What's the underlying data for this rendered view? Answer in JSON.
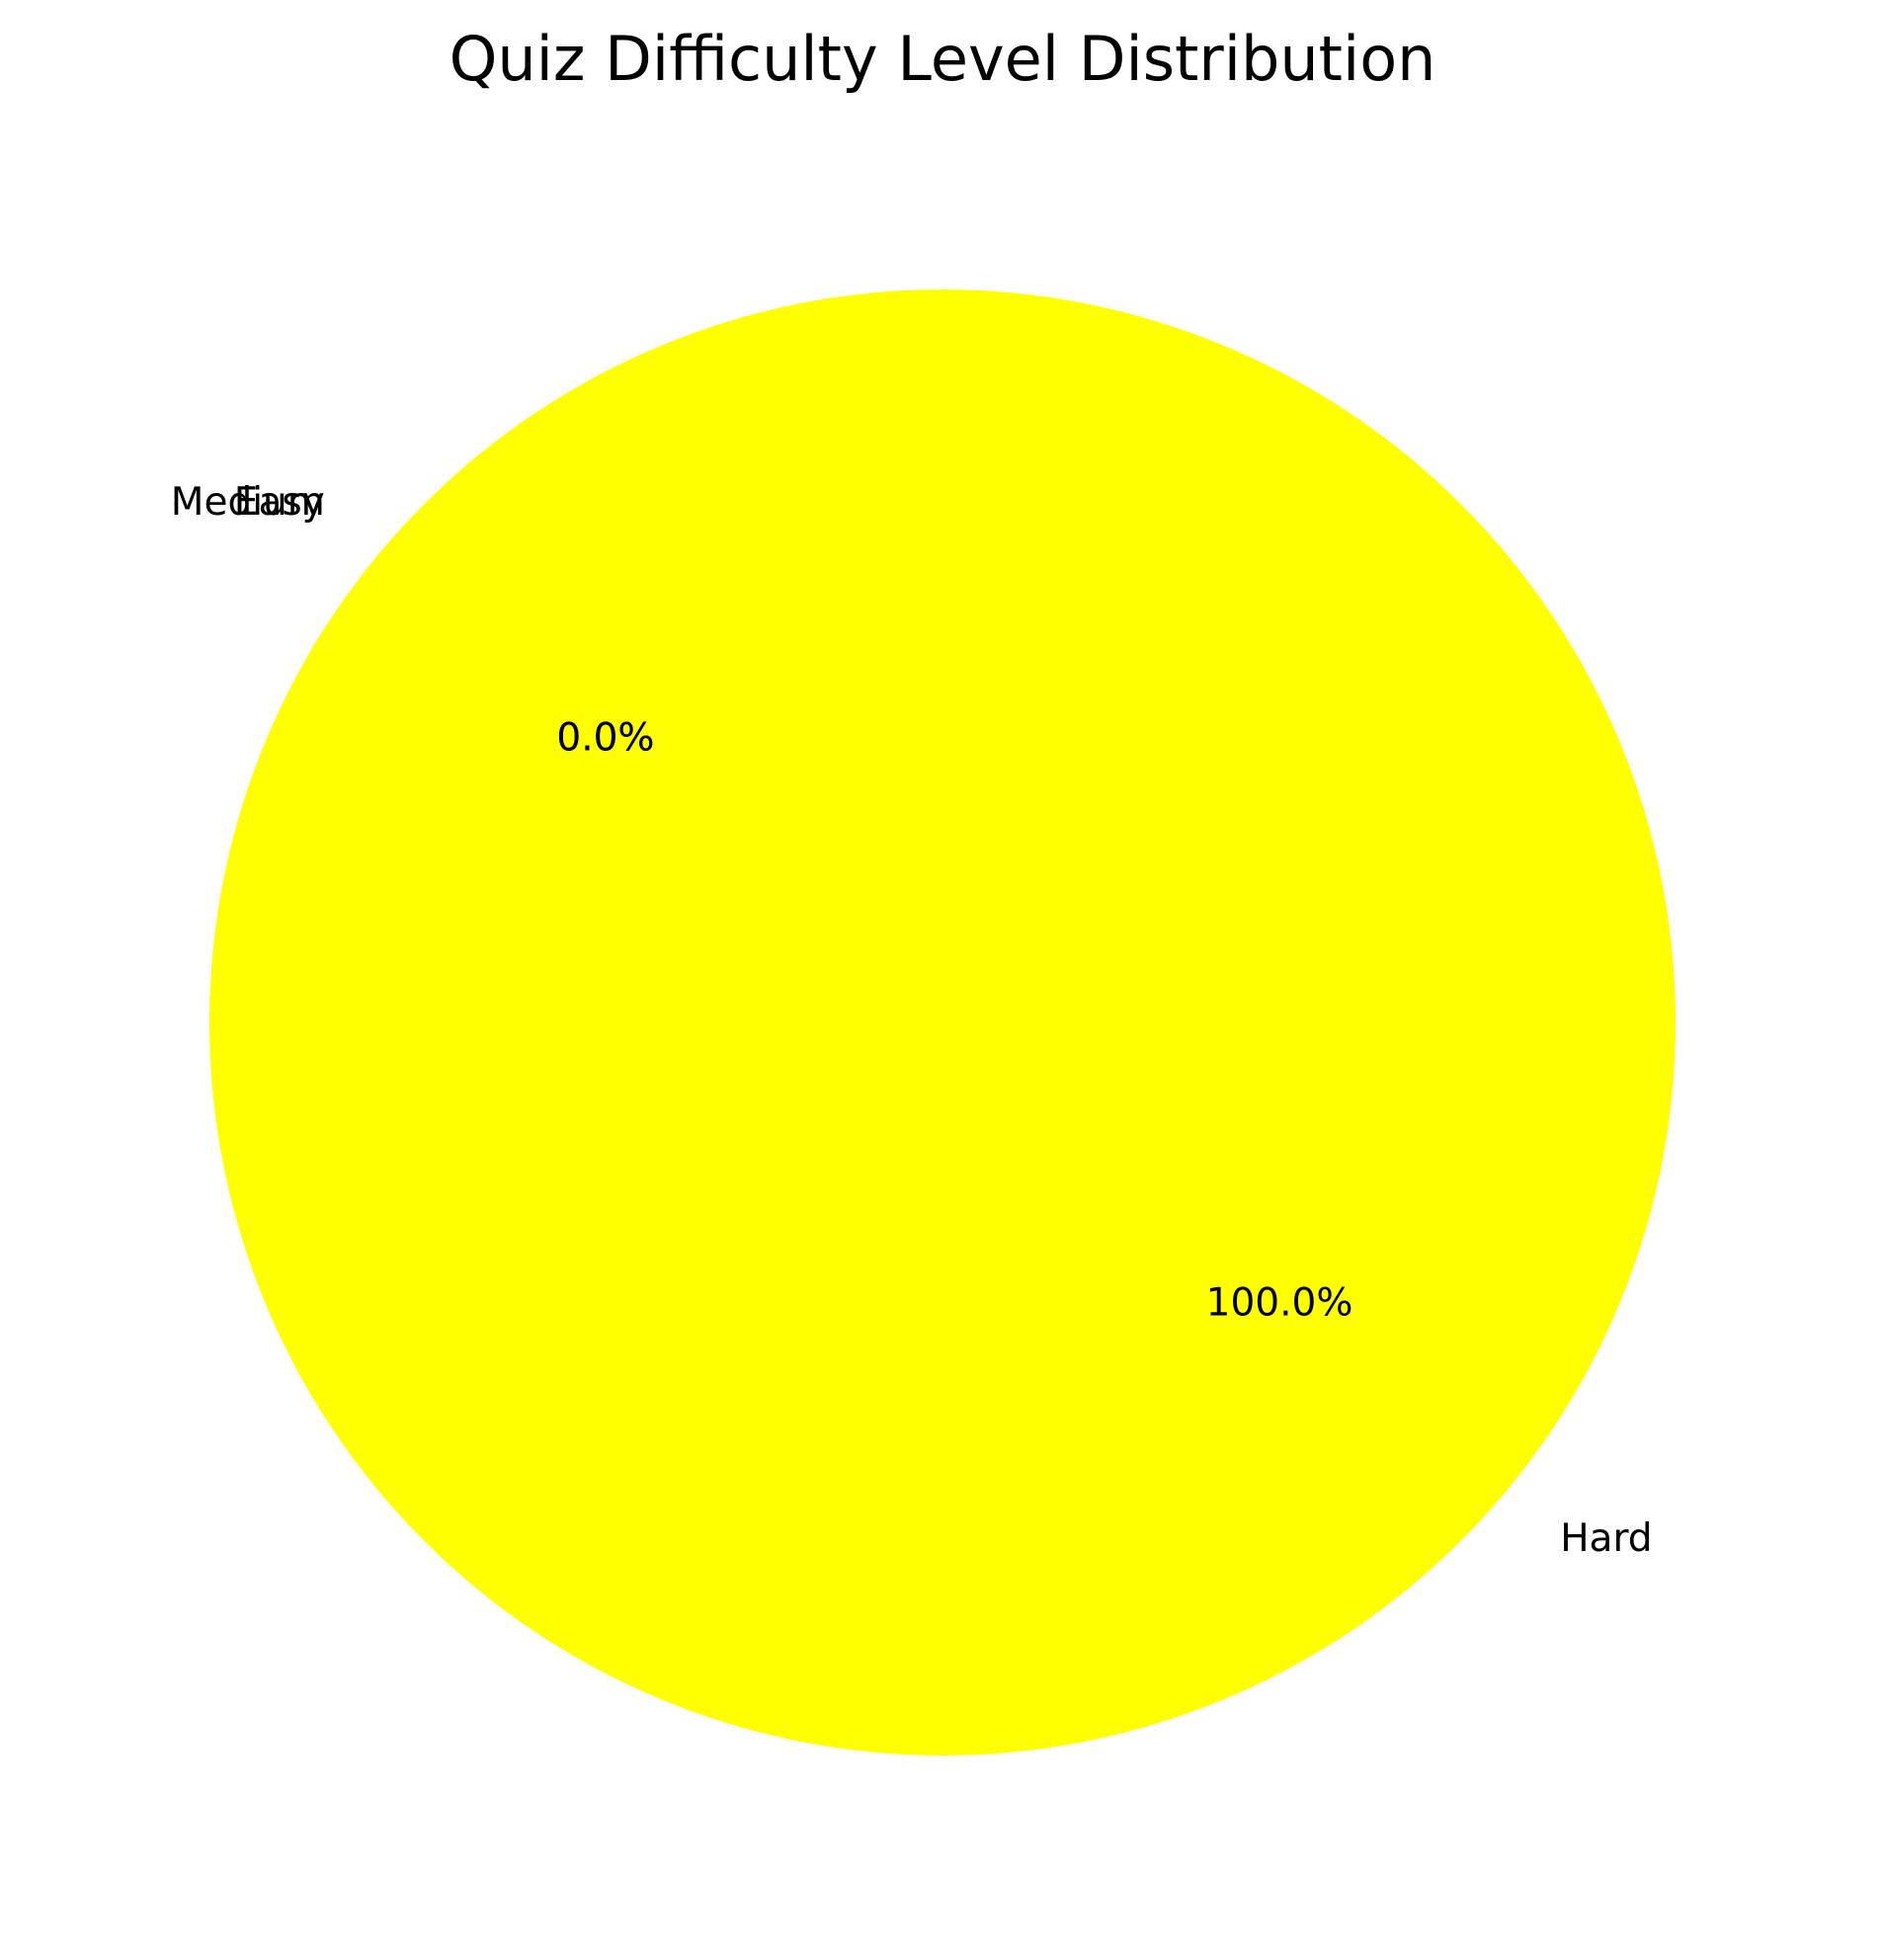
{
  "chart_data": {
    "type": "pie",
    "title": "Quiz Difficulty Level Distribution",
    "categories": [
      "Easy",
      "Medium",
      "Hard"
    ],
    "values": [
      0,
      0,
      100
    ],
    "percent_labels": [
      "0.0%",
      "0.0%",
      "100.0%"
    ],
    "colors": {
      "Easy": "#00ff00",
      "Medium": "#ffa500",
      "Hard": "#ffff00"
    },
    "start_angle_deg": 140,
    "legend": "none"
  }
}
